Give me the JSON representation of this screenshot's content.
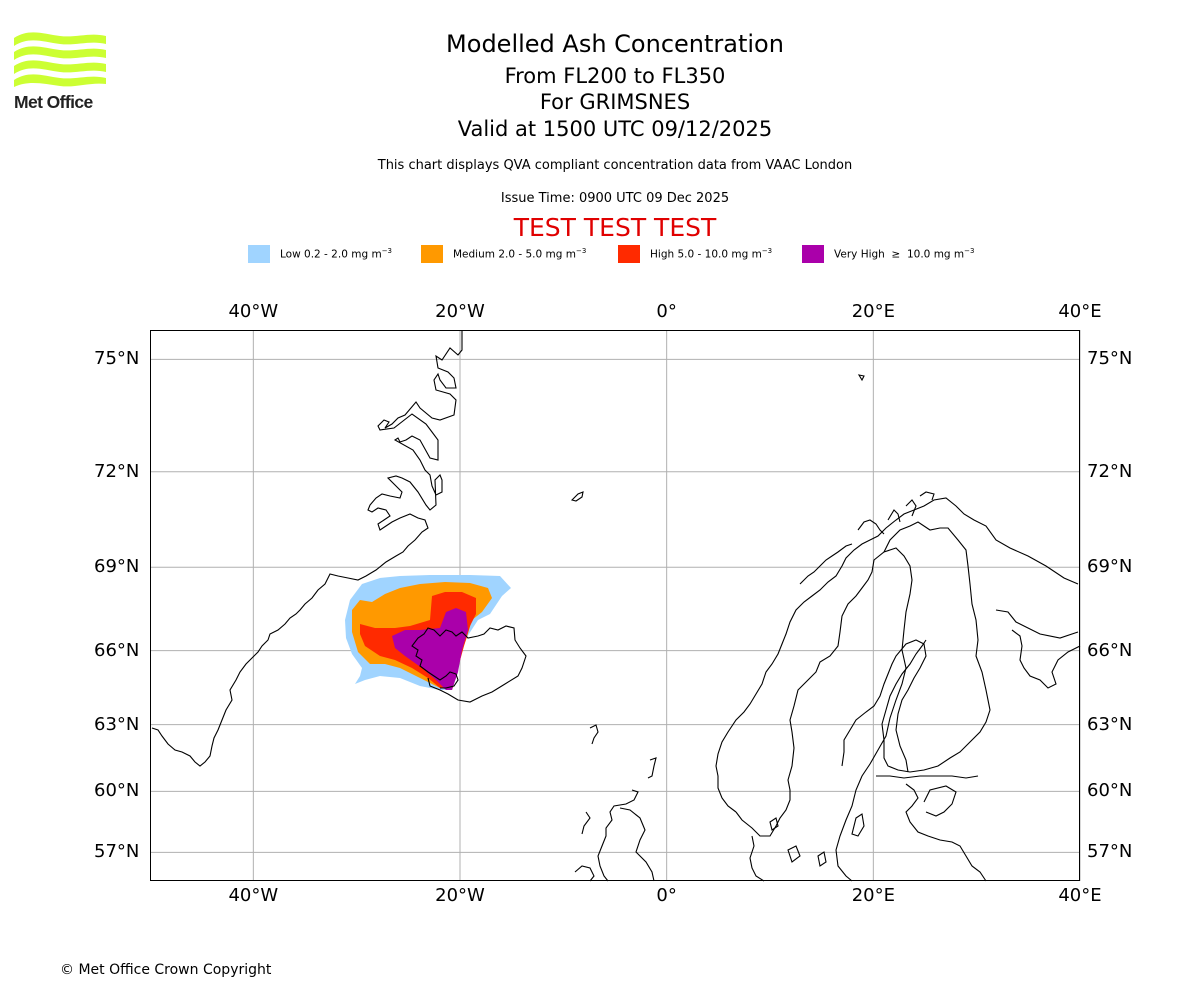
{
  "logo": {
    "brand_text": "Met Office",
    "wave_color": "#ccff33"
  },
  "title": {
    "main": "Modelled Ash Concentration",
    "levels": "From FL200 to FL350",
    "volcano": "For GRIMSNES",
    "valid": "Valid at 1500 UTC 09/12/2025"
  },
  "subtitle": "This chart displays QVA compliant concentration data from VAAC London",
  "issue_time": "Issue Time: 0900 UTC 09 Dec 2025",
  "test_banner": {
    "text": "TEST TEST TEST",
    "color": "#e00000"
  },
  "legend": [
    {
      "label": "Low 0.2 - 2.0 mg m",
      "exp": "−3",
      "color": "#a0d4ff"
    },
    {
      "label": "Medium 2.0 - 5.0 mg m",
      "exp": "−3",
      "color": "#ff9900"
    },
    {
      "label": "High 5.0 - 10.0 mg m",
      "exp": "−3",
      "color": "#ff2a00"
    },
    {
      "label": "Very High  ≥  10.0 mg m",
      "exp": "−3",
      "color": "#aa00aa"
    }
  ],
  "map": {
    "lon_range": [
      -50,
      40
    ],
    "lat_range": [
      55.5,
      75.7
    ],
    "lon_ticks": [
      {
        "value": -40,
        "label": "40°W"
      },
      {
        "value": -20,
        "label": "20°W"
      },
      {
        "value": 0,
        "label": "0°"
      },
      {
        "value": 20,
        "label": "20°E"
      },
      {
        "value": 40,
        "label": "40°E"
      }
    ],
    "lat_ticks": [
      {
        "value": 75,
        "label": "75°N"
      },
      {
        "value": 72,
        "label": "72°N"
      },
      {
        "value": 69,
        "label": "69°N"
      },
      {
        "value": 66,
        "label": "66°N"
      },
      {
        "value": 63,
        "label": "63°N"
      },
      {
        "value": 60,
        "label": "60°N"
      },
      {
        "value": 57,
        "label": "57°N"
      }
    ],
    "grid_color": "#b0b0b0"
  },
  "footer": "© Met Office Crown Copyright"
}
